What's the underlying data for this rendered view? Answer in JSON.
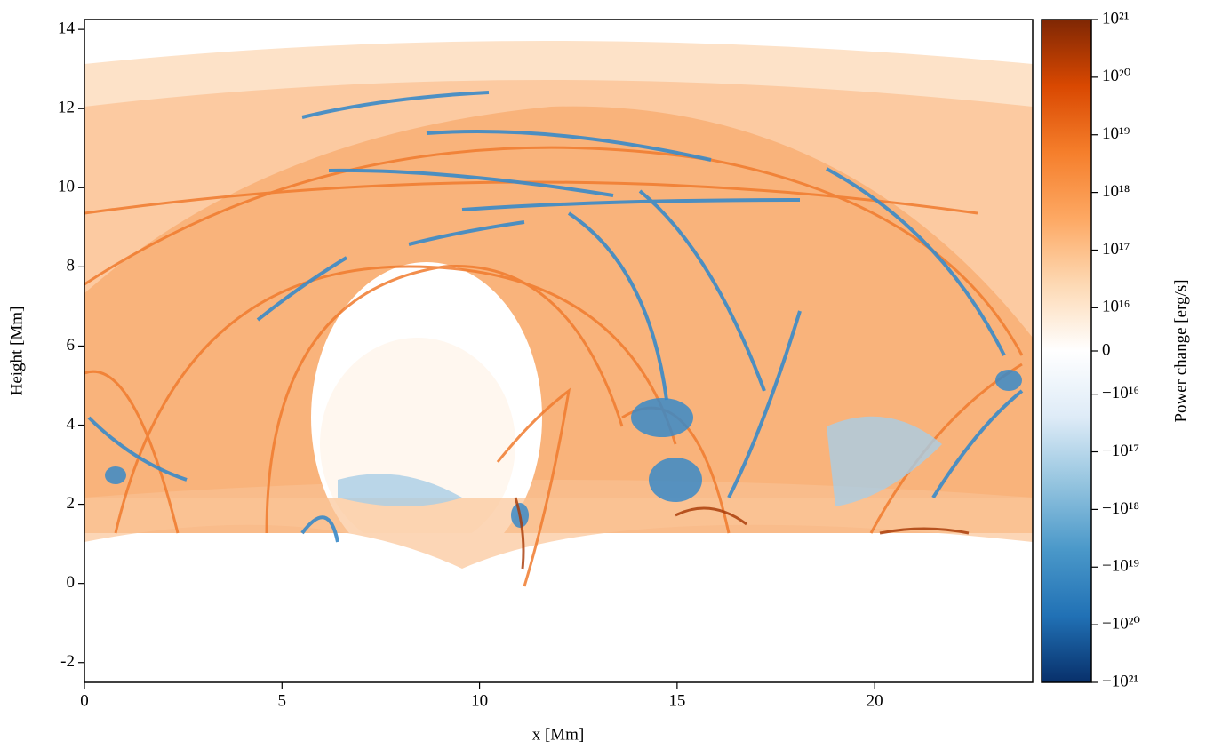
{
  "chart_data": {
    "type": "heatmap",
    "xlabel": "x [Mm]",
    "ylabel": "Height [Mm]",
    "xlim": [
      0,
      24
    ],
    "ylim": [
      -2.5,
      14.25
    ],
    "xticks": [
      0,
      5,
      10,
      15,
      20
    ],
    "yticks": [
      -2,
      0,
      2,
      4,
      6,
      8,
      10,
      12,
      14
    ],
    "colorbar": {
      "label": "Power change [erg/s]",
      "scale": "symlog",
      "linthresh": 1e+16,
      "lim": [
        -1e+21,
        1e+21
      ],
      "cmap": [
        "#08306b",
        "#2171b5",
        "#4a98c9",
        "#94c4df",
        "#deebf7",
        "#ffffff",
        "#fdd9b4",
        "#fda863",
        "#f57e2b",
        "#d94801",
        "#7f2704"
      ],
      "ticks": [
        {
          "value": 1e+21,
          "label": "10²¹"
        },
        {
          "value": 1e+20,
          "label": "10²⁰"
        },
        {
          "value": 1e+19,
          "label": "10¹⁹"
        },
        {
          "value": 1e+18,
          "label": "10¹⁸"
        },
        {
          "value": 1e+17,
          "label": "10¹⁷"
        },
        {
          "value": 1e+16,
          "label": "10¹⁶"
        },
        0,
        {
          "value": -1e+16,
          "label": "−10¹⁶"
        },
        {
          "value": -1e+17,
          "label": "−10¹⁷"
        },
        {
          "value": -1e+18,
          "label": "−10¹⁸"
        },
        {
          "value": -1e+19,
          "label": "−10¹⁹"
        },
        {
          "value": -1e+20,
          "label": "−10²⁰"
        },
        {
          "value": -1e+21,
          "label": "−10²¹"
        }
      ]
    }
  }
}
